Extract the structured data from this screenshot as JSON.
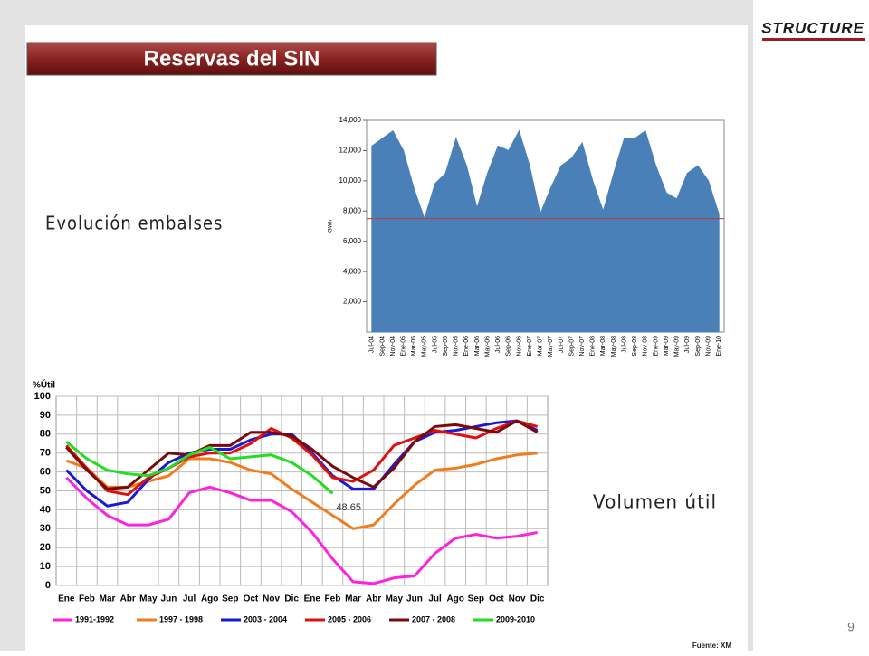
{
  "logo": "STRUCTURE",
  "title": "Reservas del SIN",
  "label_left": "Evolución embalses",
  "label_right": "Volumen útil",
  "page_number": "9",
  "source": "Fuente: XM",
  "chart_data": [
    {
      "type": "area",
      "y_label": "GWh",
      "color": "#4a80b8",
      "reference_line": 7500,
      "reference_color": "#c0392b",
      "categories": [
        "Jul-04",
        "Sep-04",
        "Nov-04",
        "Ene-05",
        "Mar-05",
        "May-05",
        "Jul-05",
        "Sep-05",
        "Nov-05",
        "Ene-06",
        "Mar-06",
        "May-06",
        "Jul-06",
        "Sep-06",
        "Nov-06",
        "Ene-07",
        "Mar-07",
        "May-07",
        "Jul-07",
        "Sep-07",
        "Nov-07",
        "Ene-08",
        "Mar-08",
        "May-08",
        "Jul-08",
        "Sep-08",
        "Nov-08",
        "Ene-09",
        "Mar-09",
        "May-09",
        "Jul-09",
        "Sep-09",
        "Nov-09",
        "Ene-10"
      ],
      "values": [
        12300,
        12800,
        13300,
        12000,
        9500,
        7500,
        9800,
        10500,
        12800,
        11000,
        8200,
        10500,
        12300,
        12000,
        13300,
        11000,
        7800,
        9500,
        11000,
        11500,
        12500,
        10000,
        8000,
        10500,
        12800,
        12800,
        13300,
        11000,
        9200,
        8800,
        10500,
        11000,
        10000,
        7800
      ],
      "ylim": [
        0,
        14000
      ],
      "yticks": [
        {
          "value": 2000,
          "label": "2,000"
        },
        {
          "value": 4000,
          "label": "4,000"
        },
        {
          "value": 6000,
          "label": "6,000"
        },
        {
          "value": 8000,
          "label": "8,000"
        },
        {
          "value": 10000,
          "label": "10,000"
        },
        {
          "value": 12000,
          "label": "12,000"
        },
        {
          "value": 14000,
          "label": "14,000"
        }
      ]
    },
    {
      "type": "line",
      "y_label": "%Útil",
      "grid": true,
      "categories": [
        "Ene",
        "Feb",
        "Mar",
        "Abr",
        "May",
        "Jun",
        "Jul",
        "Ago",
        "Sep",
        "Oct",
        "Nov",
        "Dic",
        "Ene",
        "Feb",
        "Mar",
        "Abr",
        "May",
        "Jun",
        "Jul",
        "Ago",
        "Sep",
        "Oct",
        "Nov",
        "Dic"
      ],
      "ylim": [
        0,
        100
      ],
      "yticks": [
        0,
        10,
        20,
        30,
        40,
        50,
        60,
        70,
        80,
        90,
        100
      ],
      "series": [
        {
          "name": "1991-1992",
          "color": "#ff22dd",
          "values": [
            57,
            46,
            37,
            32,
            32,
            35,
            49,
            52,
            49,
            45,
            45,
            39,
            28,
            14,
            2,
            1,
            4,
            5,
            17,
            25,
            27,
            25,
            26,
            28
          ]
        },
        {
          "name": "1997 - 1998",
          "color": "#f07c1e",
          "values": [
            66,
            62,
            52,
            52,
            55,
            58,
            67,
            67,
            65,
            61,
            59,
            51,
            44,
            37,
            30,
            32,
            43,
            53,
            61,
            62,
            64,
            67,
            69,
            70
          ]
        },
        {
          "name": "2003 - 2004",
          "color": "#1a1ad0",
          "values": [
            61,
            50,
            42,
            44,
            56,
            65,
            70,
            72,
            72,
            77,
            80,
            80,
            70,
            58,
            51,
            51,
            64,
            76,
            81,
            82,
            84,
            86,
            87,
            82
          ]
        },
        {
          "name": "2005 - 2006",
          "color": "#e01010",
          "values": [
            74,
            62,
            50,
            48,
            57,
            62,
            68,
            70,
            70,
            75,
            83,
            78,
            69,
            57,
            55,
            61,
            74,
            78,
            82,
            80,
            78,
            83,
            87,
            84
          ]
        },
        {
          "name": "2007 - 2008",
          "color": "#7a0a0a",
          "values": [
            73,
            61,
            51,
            52,
            61,
            70,
            69,
            74,
            74,
            81,
            81,
            79,
            72,
            63,
            57,
            52,
            62,
            76,
            84,
            85,
            83,
            81,
            87,
            81
          ]
        },
        {
          "name": "2009-2010",
          "color": "#22dd22",
          "values": [
            76,
            67,
            61,
            59,
            58,
            62,
            69,
            73,
            67,
            68,
            69,
            65,
            58,
            48.65,
            null,
            null,
            null,
            null,
            null,
            null,
            null,
            null,
            null,
            null
          ]
        }
      ]
    }
  ]
}
